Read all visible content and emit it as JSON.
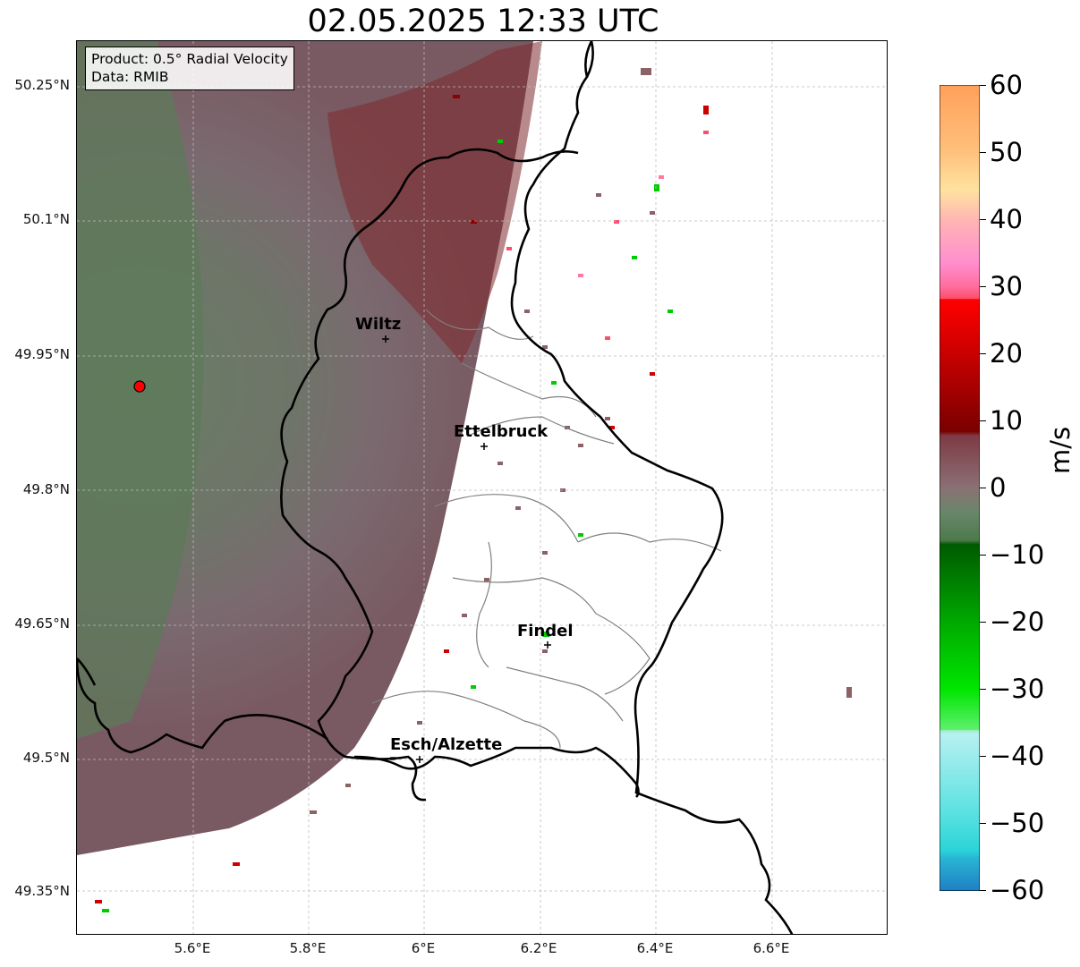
{
  "title": "02.05.2025 12:33 UTC",
  "info": {
    "product": "Product: 0.5° Radial Velocity",
    "source": "Data: RMIB"
  },
  "lat_ticks": [
    "50.25°N",
    "50.1°N",
    "49.95°N",
    "49.8°N",
    "49.65°N",
    "49.5°N",
    "49.35°N"
  ],
  "lon_ticks": [
    "5.6°E",
    "5.8°E",
    "6°E",
    "6.2°E",
    "6.4°E",
    "6.6°E"
  ],
  "cities": [
    {
      "name": "Wiltz"
    },
    {
      "name": "Ettelbruck"
    },
    {
      "name": "Findel"
    },
    {
      "name": "Esch/Alzette"
    }
  ],
  "colorbar": {
    "label": "m/s",
    "ticks": [
      "60",
      "50",
      "40",
      "30",
      "20",
      "10",
      "0",
      "−10",
      "−20",
      "−30",
      "−40",
      "−50",
      "−60"
    ],
    "range": [
      -60,
      60
    ]
  },
  "colors": {
    "radar_site": "#ff0000",
    "border": "#000000",
    "canton_border": "#808080",
    "grid": "#bbbbbb"
  }
}
